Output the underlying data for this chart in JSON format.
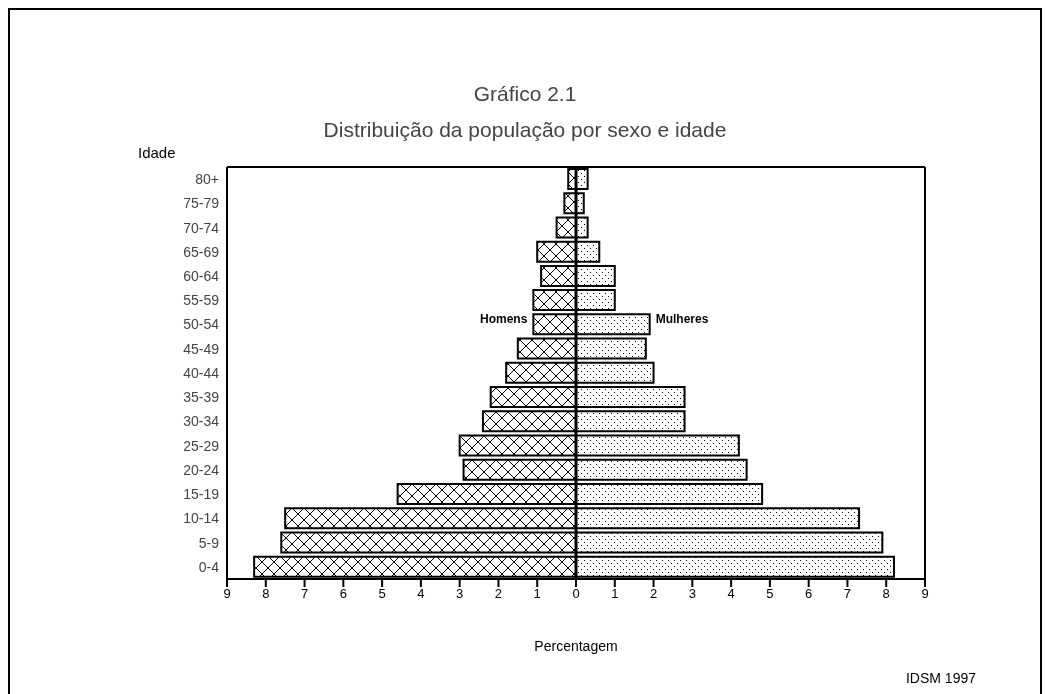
{
  "chart_data": {
    "type": "bar",
    "orientation": "horizontal",
    "stacked": true,
    "title": "Gráfico 2.1",
    "subtitle": "Distribuição da população por sexo e idade",
    "ylabel": "Idade",
    "xlabel": "Percentagem",
    "annotations": [
      "IDSM 1997"
    ],
    "categories": [
      "80+",
      "75-79",
      "70-74",
      "65-69",
      "60-64",
      "55-59",
      "50-54",
      "45-49",
      "40-44",
      "35-39",
      "30-34",
      "25-29",
      "20-24",
      "15-19",
      "10-14",
      "5-9",
      "0-4"
    ],
    "series": [
      {
        "name": "Homens",
        "color": "#000000",
        "values": [
          -0.2,
          -0.3,
          -0.5,
          -1.0,
          -0.9,
          -1.1,
          -1.1,
          -1.5,
          -1.8,
          -2.2,
          -2.4,
          -3.0,
          -2.9,
          -4.6,
          -7.5,
          -7.6,
          -8.3
        ]
      },
      {
        "name": "Mulheres",
        "color": "#000000",
        "values": [
          0.3,
          0.2,
          0.3,
          0.6,
          1.0,
          1.0,
          1.9,
          1.8,
          2.0,
          2.8,
          2.8,
          4.2,
          4.4,
          4.8,
          7.3,
          7.9,
          8.2
        ]
      }
    ],
    "xlim": [
      -9,
      9
    ],
    "xticks": [
      {
        "value": -9,
        "label": "9"
      },
      {
        "value": -8,
        "label": "8"
      },
      {
        "value": -7,
        "label": "7"
      },
      {
        "value": -6,
        "label": "6"
      },
      {
        "value": -5,
        "label": "5"
      },
      {
        "value": -4,
        "label": "4"
      },
      {
        "value": -3,
        "label": "3"
      },
      {
        "value": -2,
        "label": "2"
      },
      {
        "value": -1,
        "label": "1"
      },
      0,
      1,
      2,
      3,
      4,
      5,
      6,
      7,
      8,
      9
    ]
  }
}
